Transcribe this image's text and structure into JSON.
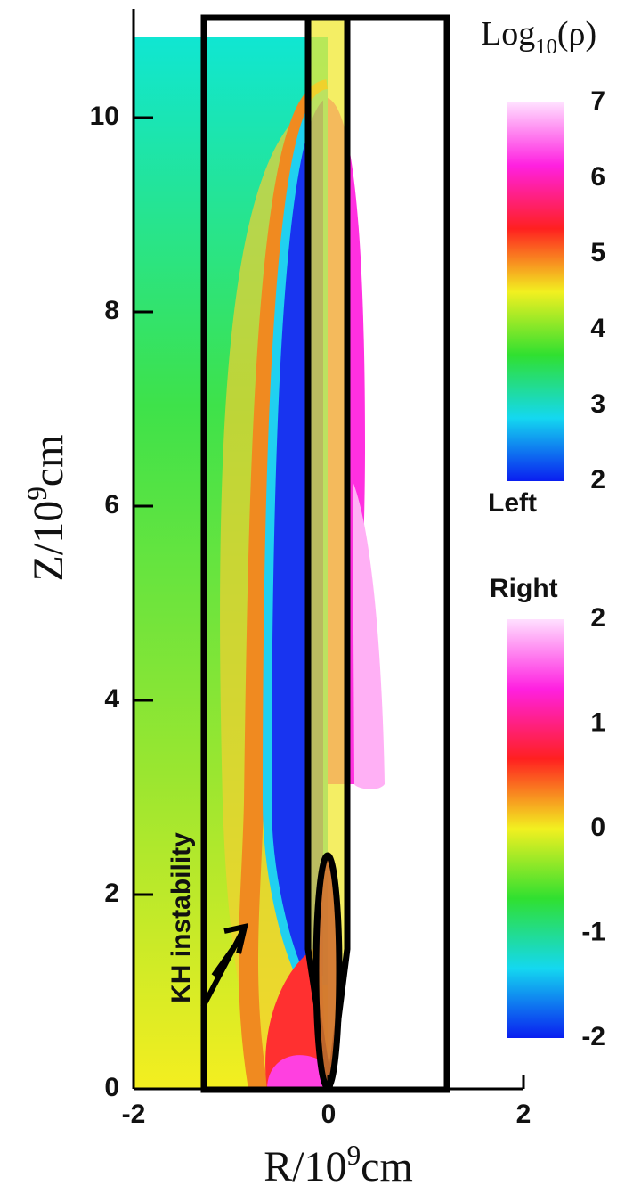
{
  "chart_data": {
    "type": "heatmap",
    "xlabel": {
      "base": "R/10",
      "sup": "9",
      "unit": "cm"
    },
    "ylabel": {
      "base": "Z/10",
      "sup": "9",
      "unit": "cm"
    },
    "xlim": [
      -2,
      2
    ],
    "xticks": [
      -2,
      0,
      2
    ],
    "ylim": [
      0,
      11
    ],
    "yticks": [
      0,
      2,
      4,
      6,
      8,
      10
    ],
    "colormap": [
      "#0a1ef0",
      "#14d8f0",
      "#30e030",
      "#f2f020",
      "#ff2020",
      "#ff20e0",
      "#ffe0ff"
    ],
    "colorbars": [
      {
        "title": {
          "base": "Log",
          "sub": "10",
          "unit": "(ρ)"
        },
        "label": "Left",
        "lim": [
          2,
          7
        ],
        "ticks": [
          2,
          3,
          4,
          5,
          6,
          7
        ]
      },
      {
        "label": "Right",
        "lim": [
          -2,
          2
        ],
        "ticks": [
          -2,
          -1,
          0,
          1,
          2
        ]
      }
    ],
    "annotations": [
      "KH instability"
    ]
  }
}
